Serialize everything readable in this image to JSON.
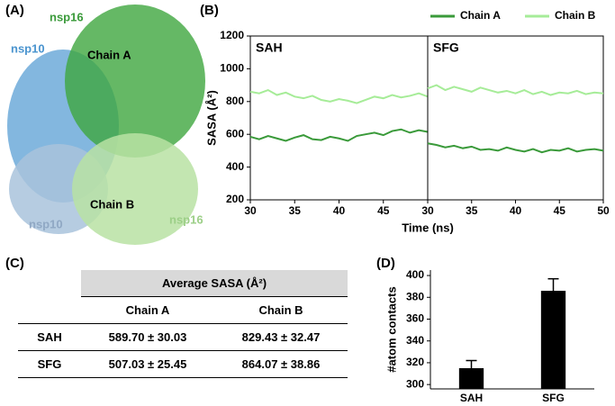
{
  "panel_labels": [
    "(A)",
    "(B)",
    "(C)",
    "(D)"
  ],
  "structure": {
    "labels": [
      "nsp16",
      "nsp10",
      "Chain A",
      "Chain B",
      "nsp10",
      "nsp16"
    ]
  },
  "chart_data": [
    {
      "type": "line",
      "title": "SAH",
      "x_label": "Time (ns)",
      "y_label": "SASA (Å²)",
      "x": [
        30,
        31,
        32,
        33,
        34,
        35,
        36,
        37,
        38,
        39,
        40,
        41,
        42,
        43,
        44,
        45,
        46,
        47,
        48,
        49,
        50
      ],
      "xlim": [
        30,
        50
      ],
      "xticks": [
        30,
        35,
        40,
        45
      ],
      "ylim": [
        200,
        1200
      ],
      "yticks": [
        200,
        400,
        600,
        800,
        1000,
        1200
      ],
      "series": [
        {
          "name": "Chain A",
          "color": "#3a9a3a",
          "values": [
            585,
            570,
            590,
            575,
            560,
            580,
            595,
            570,
            565,
            585,
            575,
            560,
            590,
            600,
            610,
            595,
            620,
            630,
            610,
            625,
            615
          ]
        },
        {
          "name": "Chain B",
          "color": "#a6ec98",
          "values": [
            860,
            850,
            870,
            840,
            855,
            830,
            820,
            835,
            810,
            800,
            815,
            805,
            790,
            810,
            830,
            820,
            840,
            825,
            835,
            850,
            830
          ]
        }
      ]
    },
    {
      "type": "line",
      "title": "SFG",
      "x": [
        30,
        31,
        32,
        33,
        34,
        35,
        36,
        37,
        38,
        39,
        40,
        41,
        42,
        43,
        44,
        45,
        46,
        47,
        48,
        49,
        50
      ],
      "xlim": [
        30,
        50
      ],
      "xticks": [
        30,
        35,
        40,
        45,
        50
      ],
      "ylim": [
        200,
        1200
      ],
      "series": [
        {
          "color": "#3a9a3a",
          "values": [
            545,
            535,
            520,
            530,
            515,
            525,
            505,
            510,
            500,
            520,
            505,
            495,
            510,
            490,
            505,
            500,
            515,
            495,
            505,
            510,
            500
          ]
        },
        {
          "color": "#a6ec98",
          "values": [
            880,
            900,
            870,
            890,
            875,
            860,
            885,
            870,
            855,
            865,
            850,
            870,
            845,
            860,
            840,
            855,
            850,
            865,
            845,
            855,
            850
          ]
        }
      ]
    },
    {
      "type": "bar",
      "y_label": "#atom contacts",
      "categories": [
        "SAH",
        "SFG"
      ],
      "values": [
        315,
        386
      ],
      "errors": [
        7,
        11
      ],
      "color": "#000000",
      "ylim": [
        296,
        405
      ],
      "yticks": [
        300,
        320,
        340,
        360,
        380,
        400
      ]
    }
  ],
  "table": {
    "title": "Average SASA (Å²)",
    "columns": [
      "Chain A",
      "Chain B"
    ],
    "rows": [
      [
        "SAH",
        "589.70 ± 30.03",
        "829.43 ± 32.47"
      ],
      [
        "SFG",
        "507.03 ± 25.45",
        "864.07 ± 38.86"
      ]
    ]
  }
}
